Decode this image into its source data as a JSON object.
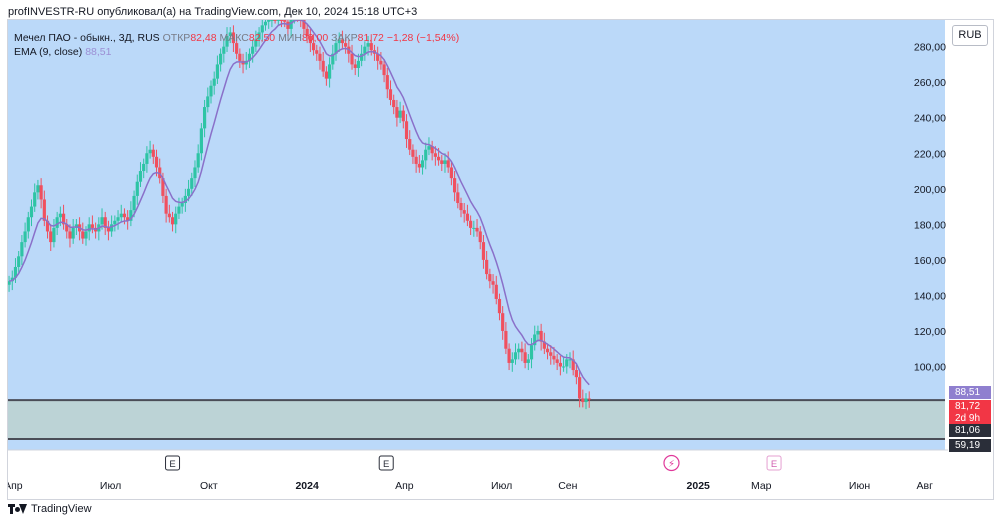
{
  "published_line": "profINVESTR-RU опубликовал(а) на TradingView.com, Дек 10, 2024 15:18 UTC+3",
  "legend": {
    "symbol": "Мечел ПАО - обыкн., 3Д, RUS",
    "open_label": "ОТКР",
    "open_value": "82,48",
    "high_label": "МАКС",
    "high_value": "82,50",
    "low_label": "МИН",
    "low_value": "80,00",
    "close_label": "ЗАКР",
    "close_value": "81,72",
    "change": "−1,28 (−1,54%)",
    "ema_label": "EMA (9, close)",
    "ema_value": "88,51"
  },
  "currency_button": "RUB",
  "price_tags": {
    "ema": {
      "text": "88,51",
      "value": 88.51,
      "color": "#8f7fcf"
    },
    "close": {
      "text": "81,72",
      "value": 81.72,
      "color": "#f23645"
    },
    "countdown": {
      "text": "2d 9h",
      "color": "#f23645"
    },
    "level_top": {
      "text": "81,06",
      "value": 81.06,
      "color": "#2a2e39"
    },
    "level_bottom": {
      "text": "59,19",
      "value": 59.19,
      "color": "#2a2e39"
    }
  },
  "event_markers": [
    {
      "label": "E",
      "type": "earnings",
      "date": "2023-08-28"
    },
    {
      "label": "E",
      "type": "earnings",
      "date": "2024-03-15"
    },
    {
      "label": "⚡",
      "type": "split",
      "date": "2024-12-07"
    },
    {
      "label": "E",
      "type": "earnings",
      "date": "2025-03-13"
    }
  ],
  "footer_brand": "TradingView",
  "colors": {
    "background": "#bbd9f9",
    "zone": "#bcd3d6",
    "up": "#2ec4a5",
    "down": "#f0505f",
    "ema": "#8a70c9",
    "level_line": "#4a4d57"
  },
  "chart_data": {
    "type": "candlestick",
    "title": "Мечел ПАО - обыкн., 3Д, RUS",
    "interval": "3D",
    "y_axis": {
      "ticks": [
        "100,00",
        "120,00",
        "140,00",
        "160,00",
        "180,00",
        "200,00",
        "220,00",
        "240,00",
        "260,00",
        "280,00"
      ],
      "ylim": [
        53,
        295
      ],
      "side": "right"
    },
    "x_axis": {
      "ticks": [
        {
          "label": "Апр",
          "date": "2023-04-01",
          "bold": false
        },
        {
          "label": "Июл",
          "date": "2023-07-01",
          "bold": false
        },
        {
          "label": "Окт",
          "date": "2023-10-01",
          "bold": false
        },
        {
          "label": "2024",
          "date": "2024-01-01",
          "bold": true
        },
        {
          "label": "Апр",
          "date": "2024-04-01",
          "bold": false
        },
        {
          "label": "Июл",
          "date": "2024-07-01",
          "bold": false
        },
        {
          "label": "Сен",
          "date": "2024-09-01",
          "bold": false
        },
        {
          "label": "2025",
          "date": "2025-01-01",
          "bold": true
        },
        {
          "label": "Мар",
          "date": "2025-03-01",
          "bold": false
        },
        {
          "label": "Июн",
          "date": "2025-06-01",
          "bold": false
        },
        {
          "label": "Авг",
          "date": "2025-08-01",
          "bold": false
        }
      ],
      "xlim": [
        "2023-03-27",
        "2025-08-20"
      ]
    },
    "horizontal_levels": [
      81.06,
      59.19
    ],
    "zone": [
      59.19,
      81.06
    ],
    "series": [
      {
        "name": "Мечел ПАО - обыкн.",
        "kind": "ohlc",
        "start_date": "2023-03-28",
        "step_days": 3,
        "close": [
          148,
          150,
          156,
          162,
          170,
          176,
          184,
          190,
          198,
          202,
          194,
          182,
          176,
          170,
          178,
          184,
          186,
          180,
          176,
          172,
          178,
          180,
          176,
          172,
          176,
          180,
          178,
          176,
          180,
          184,
          178,
          176,
          180,
          182,
          184,
          186,
          184,
          182,
          188,
          196,
          204,
          210,
          214,
          220,
          222,
          218,
          212,
          206,
          196,
          186,
          184,
          180,
          186,
          190,
          192,
          196,
          200,
          206,
          212,
          220,
          234,
          246,
          252,
          258,
          262,
          270,
          276,
          280,
          286,
          288,
          282,
          276,
          272,
          270,
          272,
          276,
          280,
          284,
          288,
          292,
          294,
          296,
          298,
          296,
          300,
          296,
          294,
          290,
          296,
          300,
          298,
          296,
          290,
          286,
          282,
          278,
          276,
          272,
          266,
          262,
          270,
          276,
          282,
          284,
          282,
          280,
          276,
          270,
          268,
          272,
          276,
          280,
          282,
          278,
          276,
          272,
          270,
          264,
          256,
          250,
          246,
          240,
          244,
          238,
          228,
          222,
          218,
          214,
          212,
          216,
          222,
          224,
          220,
          218,
          216,
          214,
          216,
          212,
          206,
          198,
          192,
          188,
          186,
          182,
          178,
          178,
          176,
          170,
          160,
          152,
          148,
          146,
          138,
          130,
          120,
          110,
          102,
          104,
          108,
          110,
          108,
          102,
          104,
          112,
          118,
          120,
          114,
          110,
          108,
          106,
          104,
          102,
          100,
          100,
          104,
          104,
          98,
          94,
          82,
          80,
          82,
          81.72
        ],
        "color_up": "#2ec4a5",
        "color_down": "#f0505f"
      },
      {
        "name": "EMA (9, close)",
        "kind": "line",
        "color": "#8a70c9",
        "last_value": 88.51
      }
    ]
  }
}
